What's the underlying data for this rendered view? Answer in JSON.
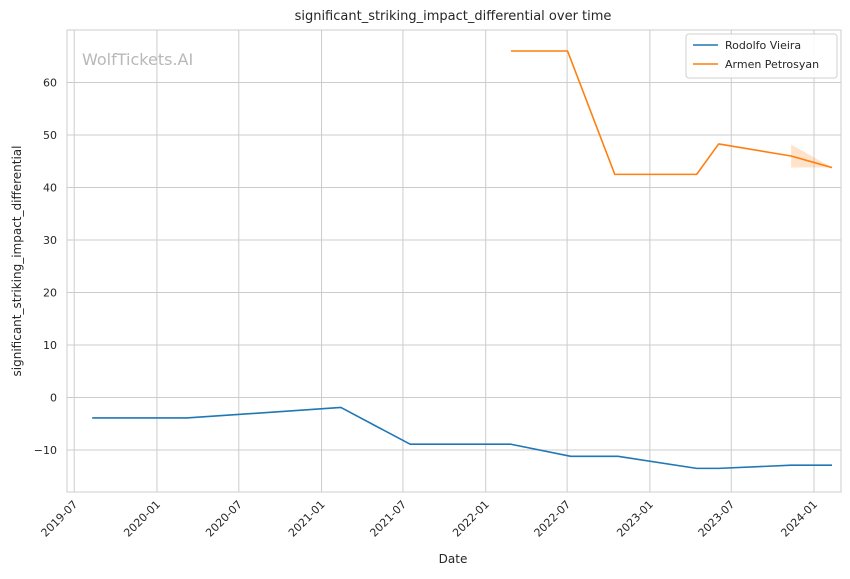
{
  "chart_data": {
    "type": "line",
    "title": "significant_striking_impact_differential over time",
    "xlabel": "Date",
    "ylabel": "significant_striking_impact_differential",
    "watermark": "WolfTickets.AI",
    "x_ticks": [
      "2019-07",
      "2020-01",
      "2020-07",
      "2021-01",
      "2021-07",
      "2022-01",
      "2022-07",
      "2023-01",
      "2023-07",
      "2024-01"
    ],
    "y_ticks": [
      -10,
      0,
      10,
      20,
      30,
      40,
      50,
      60
    ],
    "xlim": [
      "2019-06-15",
      "2024-03-01"
    ],
    "ylim": [
      -18,
      70
    ],
    "grid": true,
    "legend_position": "top-right",
    "series": [
      {
        "name": "Rodolfo Vieira",
        "color": "#1f77b4",
        "points": [
          {
            "x": "2019-08-10",
            "y": -3.9
          },
          {
            "x": "2020-03-07",
            "y": -3.9
          },
          {
            "x": "2021-02-13",
            "y": -1.9
          },
          {
            "x": "2021-07-17",
            "y": -8.9
          },
          {
            "x": "2022-02-26",
            "y": -8.9
          },
          {
            "x": "2022-07-09",
            "y": -11.2
          },
          {
            "x": "2022-10-22",
            "y": -11.2
          },
          {
            "x": "2023-04-15",
            "y": -13.5
          },
          {
            "x": "2023-06-03",
            "y": -13.5
          },
          {
            "x": "2023-11-11",
            "y": -12.9
          },
          {
            "x": "2024-02-10",
            "y": -12.9
          }
        ]
      },
      {
        "name": "Armen Petrosyan",
        "color": "#ff7f0e",
        "points": [
          {
            "x": "2022-02-26",
            "y": 66
          },
          {
            "x": "2022-07-02",
            "y": 66
          },
          {
            "x": "2022-10-15",
            "y": 42.5
          },
          {
            "x": "2023-04-15",
            "y": 42.5
          },
          {
            "x": "2023-06-03",
            "y": 48.3
          },
          {
            "x": "2023-11-11",
            "y": 46
          },
          {
            "x": "2024-02-10",
            "y": 43.8
          }
        ],
        "band": [
          {
            "x": "2023-11-11",
            "low": 43.8,
            "high": 48.2
          },
          {
            "x": "2024-02-10",
            "low": 43.8,
            "high": 43.8
          }
        ]
      }
    ]
  }
}
